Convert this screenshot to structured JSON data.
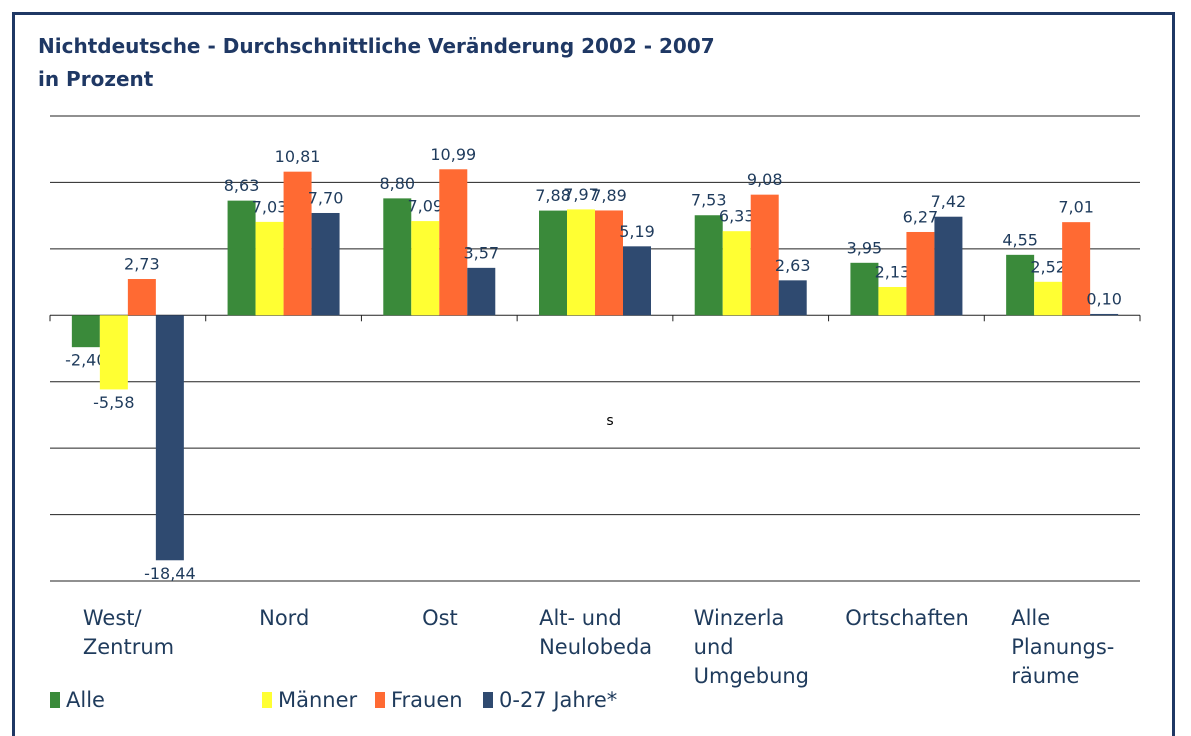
{
  "chart_data": {
    "type": "bar",
    "title": "Nichtdeutsche - Durchschnittliche Veränderung 2002 - 2007",
    "subtitle": "in Prozent",
    "annotation": "s",
    "categories": [
      "West/\nZentrum",
      "Nord",
      "Ost",
      "Alt- und\nNeulobeda",
      "Winzerla\nund\nUmgebung",
      "Ortschaften",
      "Alle\nPlanungs-\nräume"
    ],
    "series": [
      {
        "name": "Alle",
        "color": "#3a8a3a",
        "values": [
          -2.4,
          8.63,
          8.8,
          7.88,
          7.53,
          3.95,
          4.55
        ],
        "value_labels": [
          "-2,40",
          "8,63",
          "8,80",
          "7,88",
          "7,53",
          "3,95",
          "4,55"
        ]
      },
      {
        "name": "Männer",
        "color": "#ffff33",
        "values": [
          -5.58,
          7.03,
          7.09,
          7.97,
          6.33,
          2.13,
          2.52
        ],
        "value_labels": [
          "-5,58",
          "7,03",
          "7,09",
          "7,97",
          "6,33",
          "2,13",
          "2,52"
        ]
      },
      {
        "name": "Frauen",
        "color": "#ff6a33",
        "values": [
          2.73,
          10.81,
          10.99,
          7.89,
          9.08,
          6.27,
          7.01
        ],
        "value_labels": [
          "2,73",
          "10,81",
          "10,99",
          "7,89",
          "9,08",
          "6,27",
          "7,01"
        ]
      },
      {
        "name": "0-27 Jahre*",
        "color": "#2f4a70",
        "values": [
          -18.44,
          7.7,
          3.57,
          5.19,
          2.63,
          7.42,
          0.1
        ],
        "value_labels": [
          "-18,44",
          "7,70",
          "3,57",
          "5,19",
          "2,63",
          "7,42",
          "0,10"
        ]
      }
    ],
    "ylim": [
      -20,
      15
    ],
    "yticks": [
      -20,
      -15,
      -10,
      -5,
      0,
      5,
      10,
      15
    ],
    "grid": true
  }
}
